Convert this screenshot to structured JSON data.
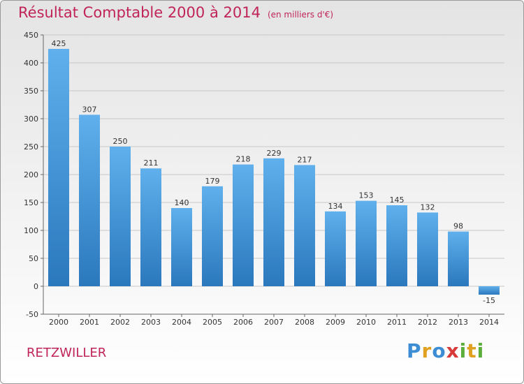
{
  "chart_data": {
    "type": "bar",
    "title": "Résultat Comptable 2000 à 2014",
    "subtitle": "(en milliers d'€)",
    "categories": [
      "2000",
      "2001",
      "2002",
      "2003",
      "2004",
      "2005",
      "2006",
      "2007",
      "2008",
      "2009",
      "2010",
      "2011",
      "2012",
      "2013",
      "2014"
    ],
    "values": [
      425,
      307,
      250,
      211,
      140,
      179,
      218,
      229,
      217,
      134,
      153,
      145,
      132,
      98,
      -15
    ],
    "ylim": [
      -50,
      450
    ],
    "yticks": [
      -50,
      0,
      50,
      100,
      150,
      200,
      250,
      300,
      350,
      400,
      450
    ],
    "grid": true,
    "bar_color": "#3a8fd6",
    "bar_color_light": "#5fb0ec",
    "bar_color_dark": "#2b78bd"
  },
  "footer": {
    "commune": "RETZWILLER"
  },
  "logo": {
    "letters": [
      "P",
      "r",
      "o",
      "x",
      "i",
      "t",
      "i"
    ],
    "colors": [
      "#3d8dd4",
      "#e0a020",
      "#3d8dd4",
      "#d83a3a",
      "#5cae3a",
      "#e0a020",
      "#5cae3a"
    ]
  }
}
